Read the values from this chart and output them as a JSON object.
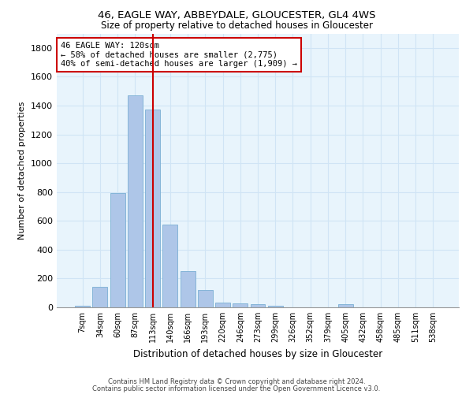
{
  "title_line1": "46, EAGLE WAY, ABBEYDALE, GLOUCESTER, GL4 4WS",
  "title_line2": "Size of property relative to detached houses in Gloucester",
  "xlabel": "Distribution of detached houses by size in Gloucester",
  "ylabel": "Number of detached properties",
  "bar_labels": [
    "7sqm",
    "34sqm",
    "60sqm",
    "87sqm",
    "113sqm",
    "140sqm",
    "166sqm",
    "193sqm",
    "220sqm",
    "246sqm",
    "273sqm",
    "299sqm",
    "326sqm",
    "352sqm",
    "379sqm",
    "405sqm",
    "432sqm",
    "458sqm",
    "485sqm",
    "511sqm",
    "538sqm"
  ],
  "bar_values": [
    10,
    140,
    795,
    1470,
    1375,
    575,
    250,
    120,
    35,
    25,
    20,
    12,
    0,
    0,
    0,
    20,
    0,
    0,
    0,
    0,
    0
  ],
  "bar_color": "#aec6e8",
  "bar_edge_color": "#7aafd4",
  "grid_color": "#d0e4f5",
  "background_color": "#e8f4fc",
  "vline_index": 4,
  "vline_color": "#cc0000",
  "annotation_title": "46 EAGLE WAY: 120sqm",
  "annotation_line1": "← 58% of detached houses are smaller (2,775)",
  "annotation_line2": "40% of semi-detached houses are larger (1,909) →",
  "annotation_box_color": "#ffffff",
  "annotation_box_edge": "#cc0000",
  "ylim_max": 1900,
  "yticks": [
    0,
    200,
    400,
    600,
    800,
    1000,
    1200,
    1400,
    1600,
    1800
  ],
  "footer_line1": "Contains HM Land Registry data © Crown copyright and database right 2024.",
  "footer_line2": "Contains public sector information licensed under the Open Government Licence v3.0."
}
